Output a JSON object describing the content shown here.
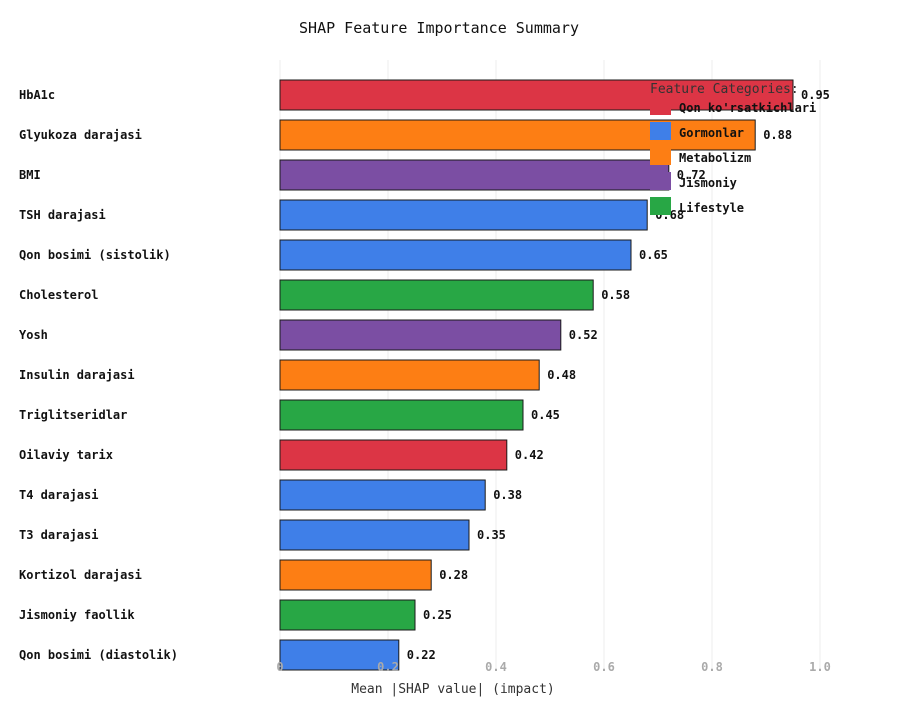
{
  "chart_data": {
    "type": "bar",
    "orientation": "horizontal",
    "title": "SHAP Feature Importance Summary",
    "xlabel": "Mean |SHAP value| (impact)",
    "xlim": [
      0,
      1.0
    ],
    "xticks": [
      "0",
      "0.2",
      "0.4",
      "0.6",
      "0.8",
      "1.0"
    ],
    "grid": true,
    "legend_position": "top-right",
    "legend_title": "Feature Categories:",
    "categories_legend": [
      {
        "name": "Qon ko'rsatkichlari",
        "color": "#dc3545"
      },
      {
        "name": "Gormonlar",
        "color": "#3f7fe8"
      },
      {
        "name": "Metabolizm",
        "color": "#fd7e14"
      },
      {
        "name": "Jismoniy",
        "color": "#7b4ea3"
      },
      {
        "name": "Lifestyle",
        "color": "#28a745"
      }
    ],
    "bars": [
      {
        "label": "HbA1c",
        "value": 0.95,
        "value_label": "0.95",
        "category": "Qon ko'rsatkichlari"
      },
      {
        "label": "Glyukoza darajasi",
        "value": 0.88,
        "value_label": "0.88",
        "category": "Metabolizm"
      },
      {
        "label": "BMI",
        "value": 0.72,
        "value_label": "0.72",
        "category": "Jismoniy"
      },
      {
        "label": "TSH darajasi",
        "value": 0.68,
        "value_label": "0.68",
        "category": "Gormonlar"
      },
      {
        "label": "Qon bosimi (sistolik)",
        "value": 0.65,
        "value_label": "0.65",
        "category": "Gormonlar"
      },
      {
        "label": "Cholesterol",
        "value": 0.58,
        "value_label": "0.58",
        "category": "Lifestyle"
      },
      {
        "label": "Yosh",
        "value": 0.52,
        "value_label": "0.52",
        "category": "Jismoniy"
      },
      {
        "label": "Insulin darajasi",
        "value": 0.48,
        "value_label": "0.48",
        "category": "Metabolizm"
      },
      {
        "label": "Triglitseridlar",
        "value": 0.45,
        "value_label": "0.45",
        "category": "Lifestyle"
      },
      {
        "label": "Oilaviy tarix",
        "value": 0.42,
        "value_label": "0.42",
        "category": "Qon ko'rsatkichlari"
      },
      {
        "label": "T4 darajasi",
        "value": 0.38,
        "value_label": "0.38",
        "category": "Gormonlar"
      },
      {
        "label": "T3 darajasi",
        "value": 0.35,
        "value_label": "0.35",
        "category": "Gormonlar"
      },
      {
        "label": "Kortizol darajasi",
        "value": 0.28,
        "value_label": "0.28",
        "category": "Metabolizm"
      },
      {
        "label": "Jismoniy faollik",
        "value": 0.25,
        "value_label": "0.25",
        "category": "Lifestyle"
      },
      {
        "label": "Qon bosimi (diastolik)",
        "value": 0.22,
        "value_label": "0.22",
        "category": "Gormonlar"
      }
    ]
  }
}
